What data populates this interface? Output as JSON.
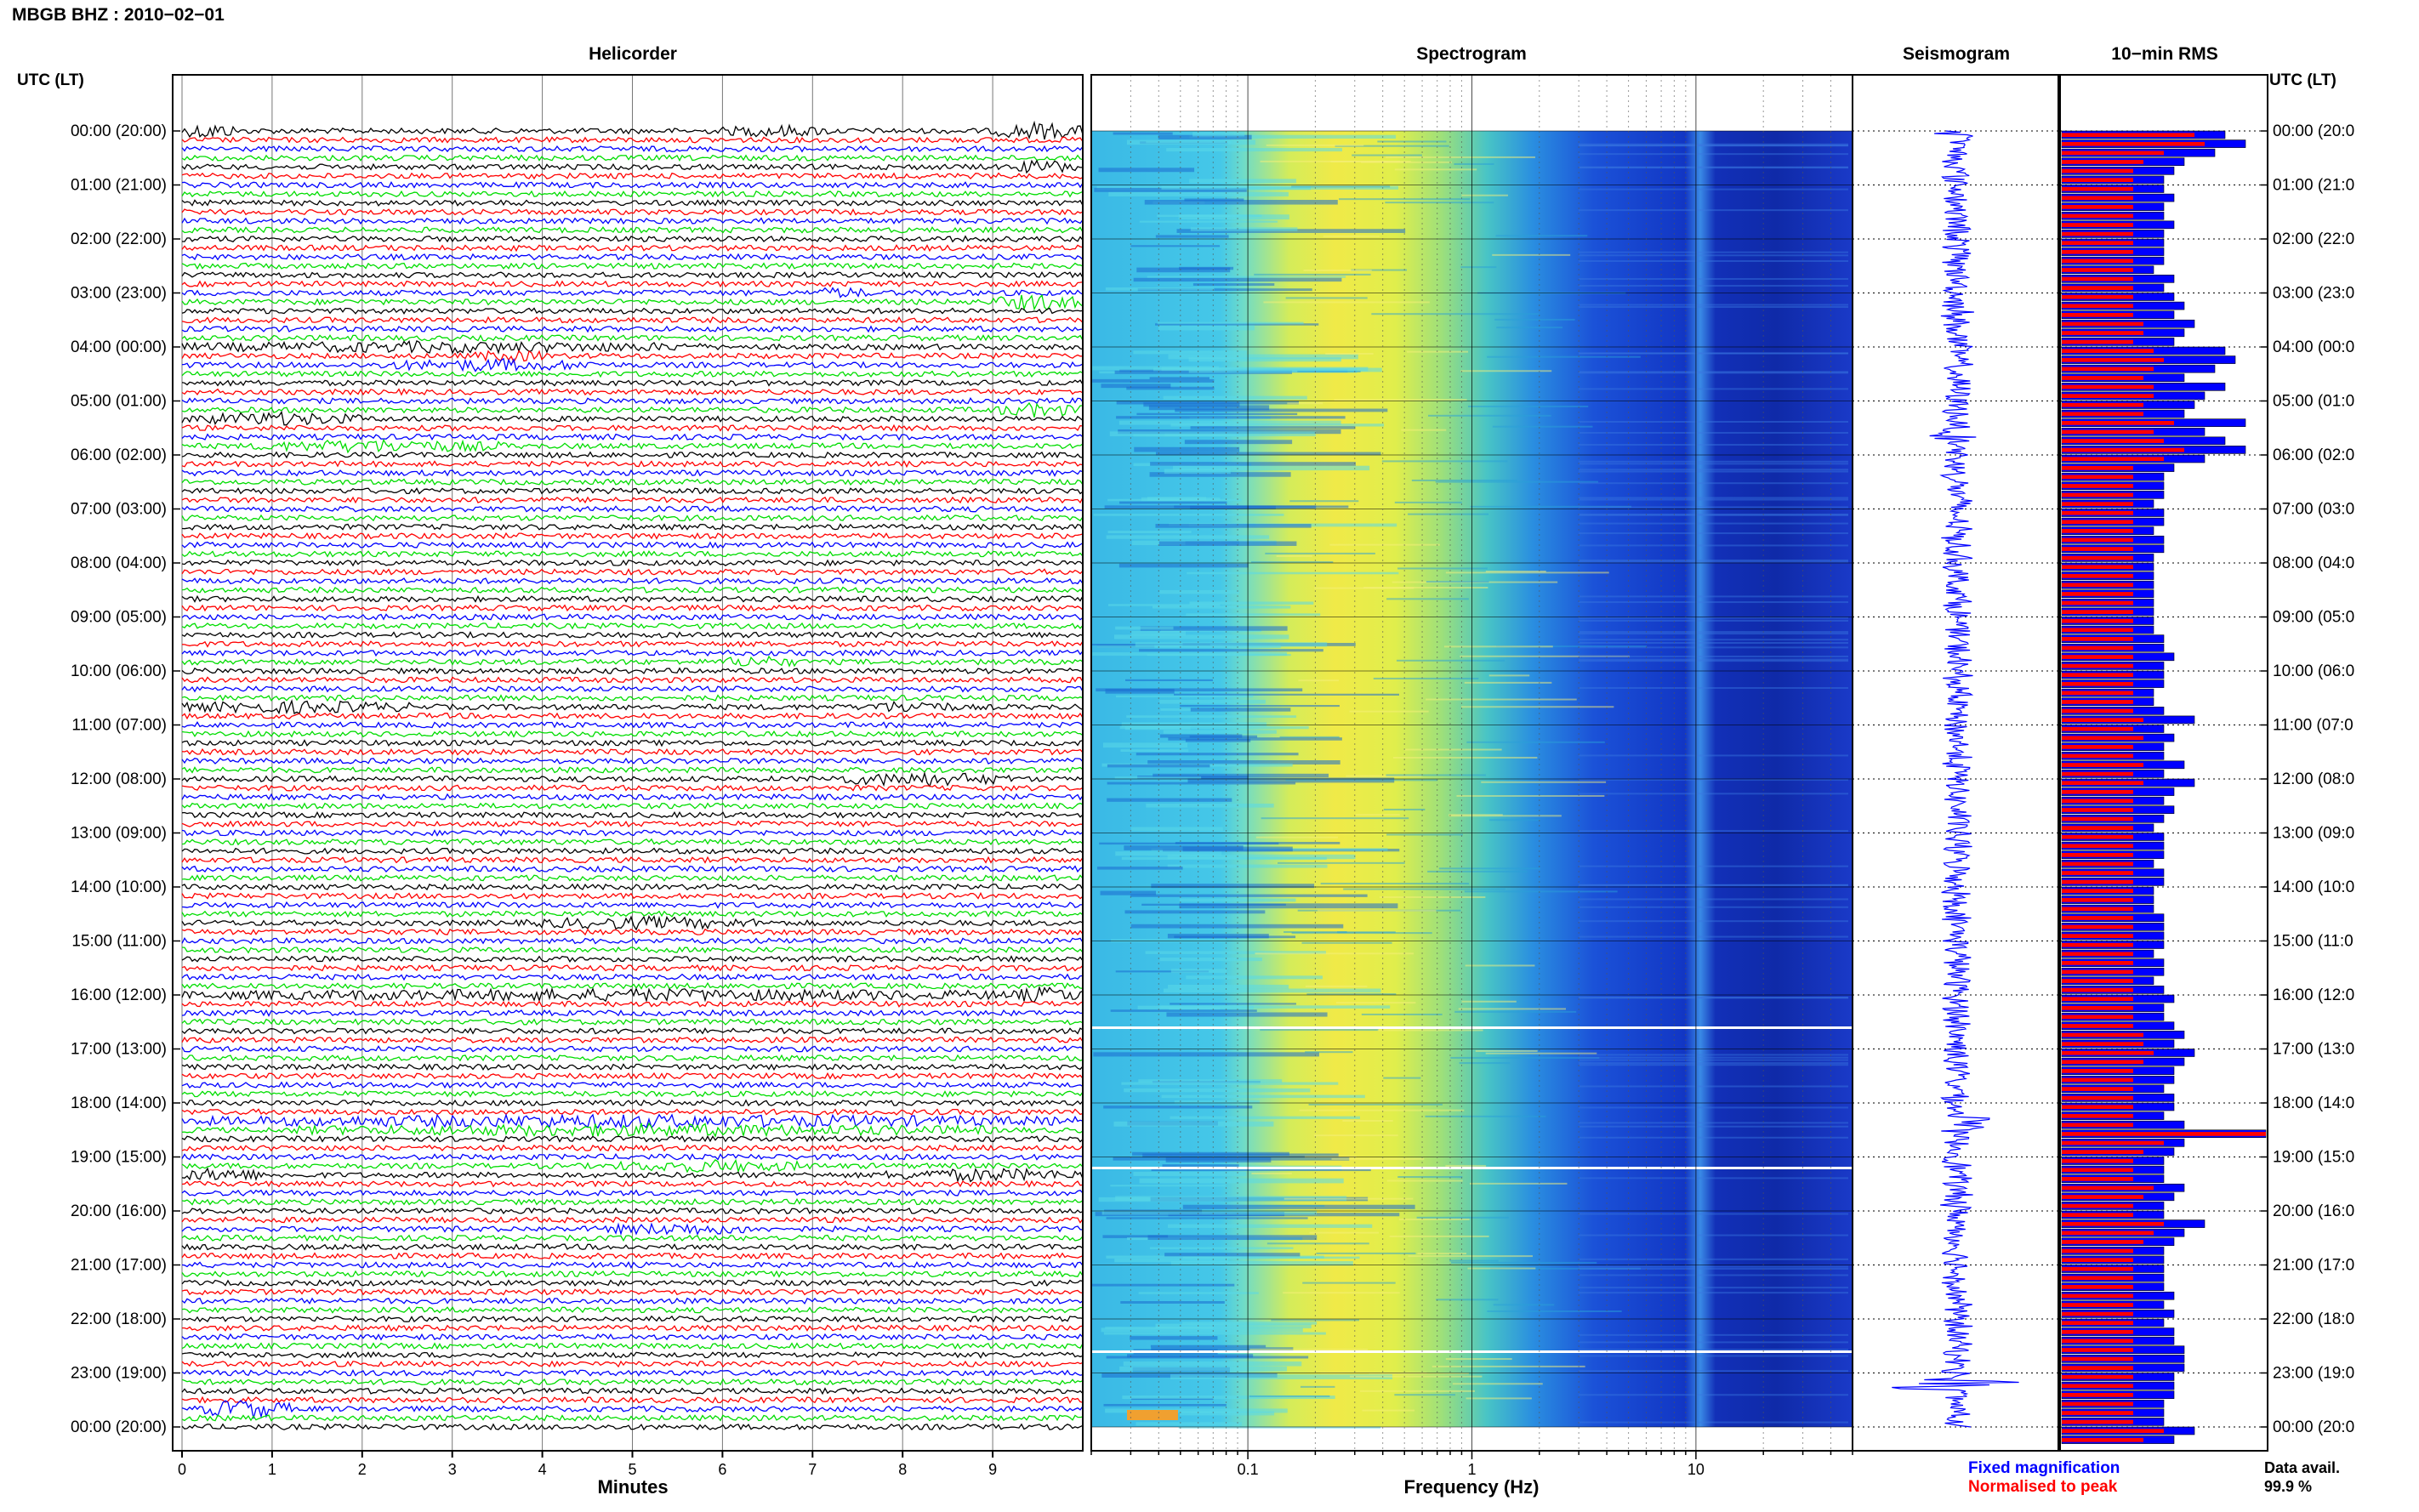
{
  "header": {
    "title": "MBGB BHZ : 2010−02−01",
    "utc_label_left": "UTC (LT)",
    "utc_label_right": "UTC (LT)"
  },
  "panels": {
    "helicorder_title": "Helicorder",
    "spectrogram_title": "Spectrogram",
    "seismogram_title": "Seismogram",
    "rms_title": "10−min RMS"
  },
  "axes": {
    "helicorder_xlabel": "Minutes",
    "spectrogram_xlabel": "Frequency (Hz)"
  },
  "footer": {
    "legend_fixed": "Fixed magnification",
    "legend_normalised": "Normalised to peak",
    "data_avail_label": "Data avail.",
    "data_avail_value": "99.9 %"
  },
  "colors": {
    "trace_cycle": [
      "#000000",
      "#ff0000",
      "#0000ff",
      "#00dd00"
    ],
    "fixed_magnification": "#0000ff",
    "normalised_to_peak": "#ff0000",
    "spectrogram_low": "#0a1a8c",
    "spectrogram_mid": "#2ee0e0",
    "spectrogram_high": "#f0f040"
  },
  "chart_data": {
    "type": "helicorder",
    "hour_labels_left": [
      "00:00 (20:00)",
      "01:00 (21:00)",
      "02:00 (22:00)",
      "03:00 (23:00)",
      "04:00 (00:00)",
      "05:00 (01:00)",
      "06:00 (02:00)",
      "07:00 (03:00)",
      "08:00 (04:00)",
      "09:00 (05:00)",
      "10:00 (06:00)",
      "11:00 (07:00)",
      "12:00 (08:00)",
      "13:00 (09:00)",
      "14:00 (10:00)",
      "15:00 (11:00)",
      "16:00 (12:00)",
      "17:00 (13:00)",
      "18:00 (14:00)",
      "19:00 (15:00)",
      "20:00 (16:00)",
      "21:00 (17:00)",
      "22:00 (18:00)",
      "23:00 (19:00)",
      "00:00 (20:00)"
    ],
    "hour_labels_right": [
      "00:00 (20:0",
      "01:00 (21:0",
      "02:00 (22:0",
      "03:00 (23:0",
      "04:00 (00:0",
      "05:00 (01:0",
      "06:00 (02:0",
      "07:00 (03:0",
      "08:00 (04:0",
      "09:00 (05:0",
      "10:00 (06:0",
      "11:00 (07:0",
      "12:00 (08:0",
      "13:00 (09:0",
      "14:00 (10:0",
      "15:00 (11:0",
      "16:00 (12:0",
      "17:00 (13:0",
      "18:00 (14:0",
      "19:00 (15:0",
      "20:00 (16:0",
      "21:00 (17:0",
      "22:00 (18:0",
      "23:00 (19:0",
      "00:00 (20:0"
    ],
    "helicorder": {
      "xticks": [
        "0",
        "1",
        "2",
        "3",
        "4",
        "5",
        "6",
        "7",
        "8",
        "9"
      ],
      "xlim": [
        0,
        10
      ],
      "rows_per_hour": 6,
      "events": [
        {
          "row": 0,
          "start": 0,
          "end": 0.6,
          "amp": 2.2
        },
        {
          "row": 0,
          "start": 6.0,
          "end": 7.2,
          "amp": 1.4
        },
        {
          "row": 0,
          "start": 9.0,
          "end": 10,
          "amp": 2.4
        },
        {
          "row": 4,
          "start": 9.2,
          "end": 10,
          "amp": 1.8
        },
        {
          "row": 18,
          "start": 7.0,
          "end": 7.6,
          "amp": 1.3
        },
        {
          "row": 19,
          "start": 9.0,
          "end": 10,
          "amp": 2.2
        },
        {
          "row": 24,
          "start": 0,
          "end": 5.8,
          "amp": 1.3
        },
        {
          "row": 25,
          "start": 3.2,
          "end": 4.1,
          "amp": 1.3
        },
        {
          "row": 26,
          "start": 2.2,
          "end": 4.6,
          "amp": 1.5
        },
        {
          "row": 31,
          "start": 9.0,
          "end": 10,
          "amp": 1.8
        },
        {
          "row": 32,
          "start": 0,
          "end": 2.0,
          "amp": 1.7
        },
        {
          "row": 35,
          "start": 0.8,
          "end": 3.6,
          "amp": 1.6
        },
        {
          "row": 59,
          "start": 6.0,
          "end": 6.8,
          "amp": 1.5
        },
        {
          "row": 64,
          "start": 0,
          "end": 2.6,
          "amp": 1.5
        },
        {
          "row": 64,
          "start": 7.6,
          "end": 8.6,
          "amp": 1.6
        },
        {
          "row": 72,
          "start": 7.2,
          "end": 9.2,
          "amp": 1.8
        },
        {
          "row": 88,
          "start": 3.8,
          "end": 6.4,
          "amp": 1.5
        },
        {
          "row": 96,
          "start": 0,
          "end": 10,
          "amp": 1.4
        },
        {
          "row": 96,
          "start": 9.2,
          "end": 10,
          "amp": 2.2
        },
        {
          "row": 110,
          "start": 0,
          "end": 10,
          "amp": 1.6
        },
        {
          "row": 111,
          "start": 1.2,
          "end": 9.0,
          "amp": 1.5
        },
        {
          "row": 115,
          "start": 4.8,
          "end": 7.0,
          "amp": 1.5
        },
        {
          "row": 116,
          "start": 0,
          "end": 0.9,
          "amp": 1.8
        },
        {
          "row": 116,
          "start": 7.8,
          "end": 10,
          "amp": 1.6
        },
        {
          "row": 122,
          "start": 4.6,
          "end": 6.4,
          "amp": 1.4
        },
        {
          "row": 142,
          "start": 0.2,
          "end": 1.2,
          "amp": 3.0
        }
      ]
    },
    "spectrogram": {
      "xscale": "log",
      "xlim": [
        0.02,
        50
      ],
      "xticks": [
        "0.1",
        "1",
        "10"
      ]
    },
    "rms": {
      "legend": [
        "Fixed magnification",
        "Normalised to peak"
      ],
      "fixed_magnification": [
        1.6,
        1.8,
        1.5,
        1.2,
        1.1,
        1.0,
        1.0,
        1.1,
        1.0,
        1.0,
        1.1,
        1.0,
        1.0,
        1.0,
        1.0,
        0.9,
        1.1,
        1.0,
        1.1,
        1.2,
        1.1,
        1.3,
        1.2,
        1.1,
        1.6,
        1.7,
        1.5,
        1.2,
        1.6,
        1.4,
        1.3,
        1.2,
        1.8,
        1.4,
        1.6,
        1.8,
        1.4,
        1.1,
        1.0,
        1.0,
        1.0,
        0.9,
        1.0,
        1.0,
        0.9,
        1.0,
        1.0,
        0.9,
        0.9,
        0.9,
        0.9,
        0.9,
        0.9,
        0.9,
        0.9,
        0.9,
        1.0,
        1.0,
        1.1,
        1.0,
        1.0,
        1.0,
        0.9,
        0.9,
        1.0,
        1.3,
        1.0,
        1.1,
        1.0,
        1.0,
        1.2,
        1.0,
        1.3,
        1.1,
        1.0,
        1.1,
        1.0,
        0.9,
        1.0,
        1.0,
        1.0,
        0.9,
        1.0,
        1.0,
        0.9,
        0.9,
        0.9,
        1.0,
        1.0,
        1.0,
        1.0,
        0.9,
        1.0,
        1.0,
        0.9,
        1.0,
        1.1,
        1.0,
        1.0,
        1.1,
        1.2,
        1.1,
        1.3,
        1.2,
        1.1,
        1.1,
        1.0,
        1.1,
        1.1,
        1.0,
        1.2,
        2.0,
        1.2,
        1.1,
        1.0,
        1.0,
        1.0,
        1.2,
        1.1,
        1.0,
        1.0,
        1.4,
        1.2,
        1.1,
        1.0,
        1.0,
        1.0,
        1.0,
        1.0,
        1.1,
        1.0,
        1.1,
        1.0,
        1.1,
        1.1,
        1.2,
        1.2,
        1.2,
        1.1,
        1.1,
        1.1,
        1.0,
        1.0,
        1.0,
        1.3,
        1.1
      ],
      "normalised_to_peak": [
        1.3,
        1.4,
        1.0,
        0.8,
        0.7,
        0.7,
        0.7,
        0.7,
        0.7,
        0.7,
        0.7,
        0.7,
        0.7,
        0.7,
        0.7,
        0.7,
        0.7,
        0.7,
        0.7,
        0.7,
        0.7,
        0.8,
        0.8,
        0.7,
        0.9,
        1.0,
        0.9,
        0.8,
        0.9,
        0.9,
        0.8,
        0.8,
        1.1,
        0.9,
        1.0,
        1.2,
        1.0,
        0.7,
        0.7,
        0.7,
        0.7,
        0.7,
        0.7,
        0.7,
        0.7,
        0.7,
        0.7,
        0.7,
        0.7,
        0.7,
        0.7,
        0.7,
        0.7,
        0.7,
        0.7,
        0.7,
        0.7,
        0.7,
        0.7,
        0.7,
        0.7,
        0.7,
        0.7,
        0.7,
        0.7,
        0.8,
        0.7,
        0.8,
        0.7,
        0.7,
        0.8,
        0.7,
        0.8,
        0.7,
        0.7,
        0.7,
        0.7,
        0.7,
        0.7,
        0.7,
        0.7,
        0.7,
        0.7,
        0.7,
        0.7,
        0.7,
        0.7,
        0.7,
        0.7,
        0.7,
        0.7,
        0.7,
        0.7,
        0.7,
        0.7,
        0.7,
        0.7,
        0.7,
        0.7,
        0.7,
        0.8,
        0.8,
        0.9,
        0.8,
        0.7,
        0.7,
        0.7,
        0.7,
        0.7,
        0.7,
        0.7,
        2.0,
        1.0,
        0.8,
        0.7,
        0.7,
        0.7,
        0.9,
        0.8,
        0.7,
        0.7,
        1.0,
        0.9,
        0.8,
        0.7,
        0.7,
        0.7,
        0.7,
        0.7,
        0.7,
        0.7,
        0.7,
        0.7,
        0.7,
        0.7,
        0.7,
        0.7,
        0.7,
        0.7,
        0.7,
        0.7,
        0.7,
        0.7,
        0.7,
        1.0,
        0.8
      ]
    }
  }
}
